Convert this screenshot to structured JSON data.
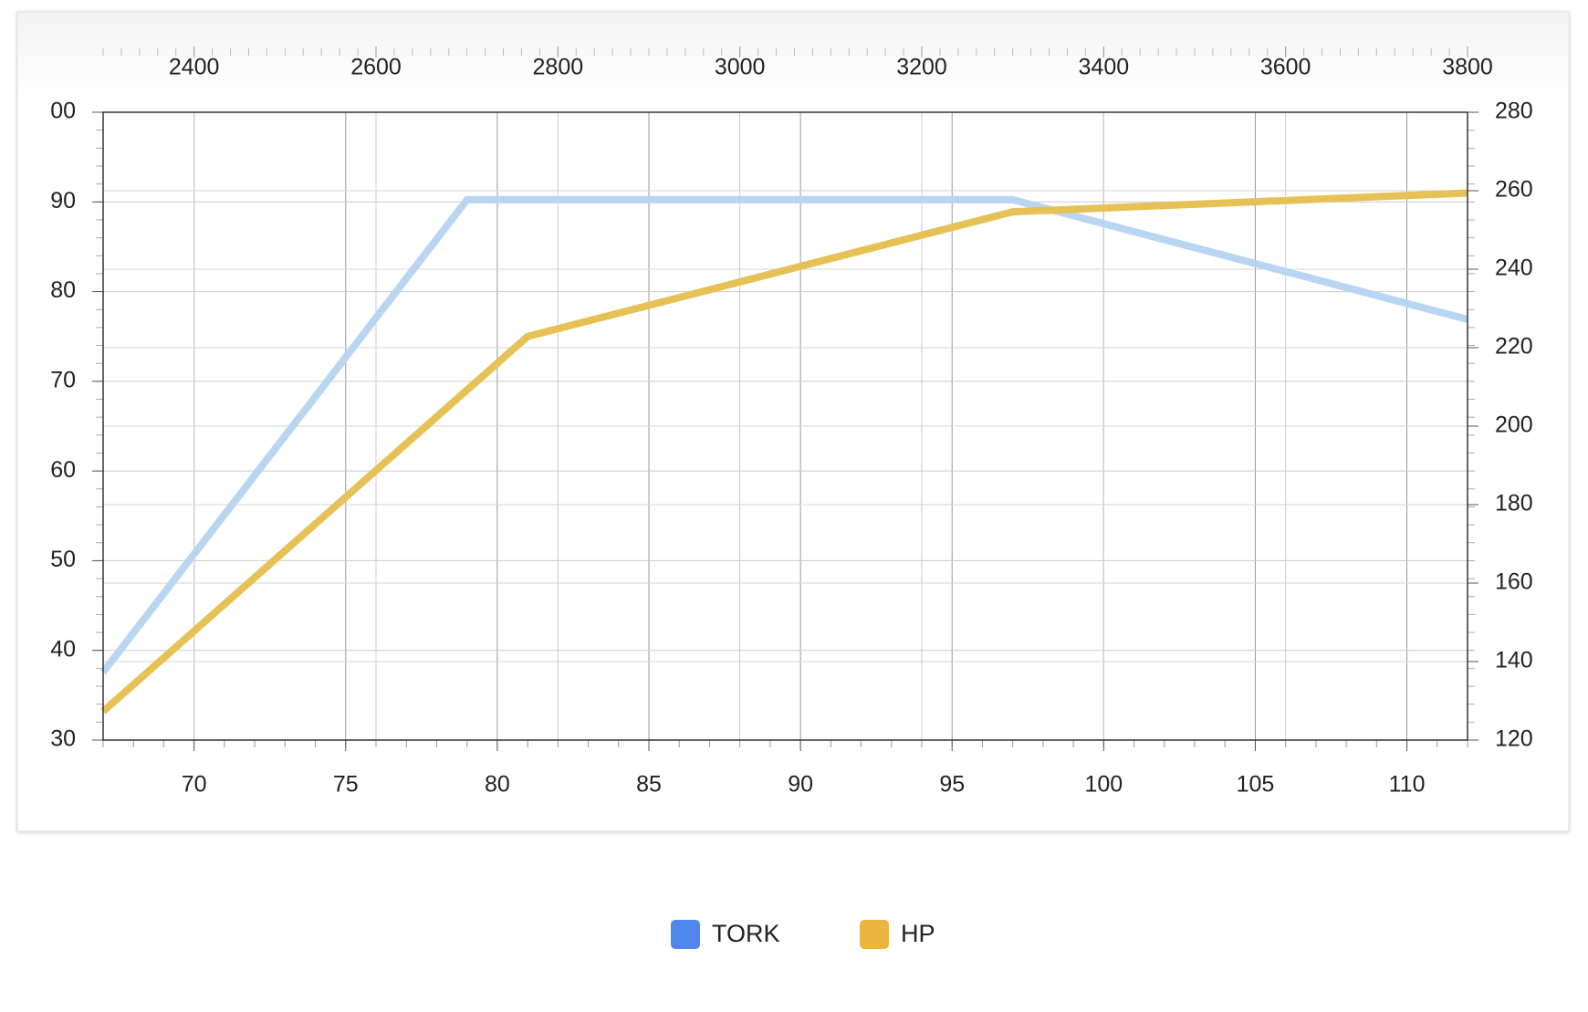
{
  "chart_data": {
    "type": "line",
    "xlim": [
      67,
      112
    ],
    "xticks": [
      70,
      75,
      80,
      85,
      90,
      95,
      100,
      105,
      110
    ],
    "x2lim": [
      2300,
      3800
    ],
    "x2ticks": [
      2400,
      2600,
      2800,
      3000,
      3200,
      3400,
      3600,
      3800
    ],
    "ylim": [
      30,
      100
    ],
    "yticks": [
      30,
      40,
      50,
      60,
      70,
      80,
      90,
      {
        "value": 100,
        "label": "00"
      }
    ],
    "y2lim": [
      120,
      280
    ],
    "y2ticks": [
      120,
      140,
      160,
      180,
      200,
      220,
      240,
      260,
      280
    ],
    "grid": true,
    "legend": "bottom",
    "series": [
      {
        "name": "TORK",
        "color": "#4e86ec",
        "line_color": "#b8d5f2",
        "axis": "y2",
        "x": [
          67,
          79,
          97,
          112
        ],
        "values": [
          137.3,
          257.7,
          257.7,
          227.2
        ]
      },
      {
        "name": "HP",
        "color": "#ebb53e",
        "line_color": "#e6c155",
        "x": [
          67,
          81,
          97,
          112
        ],
        "values": [
          33.2,
          75,
          88.9,
          91
        ]
      }
    ]
  }
}
